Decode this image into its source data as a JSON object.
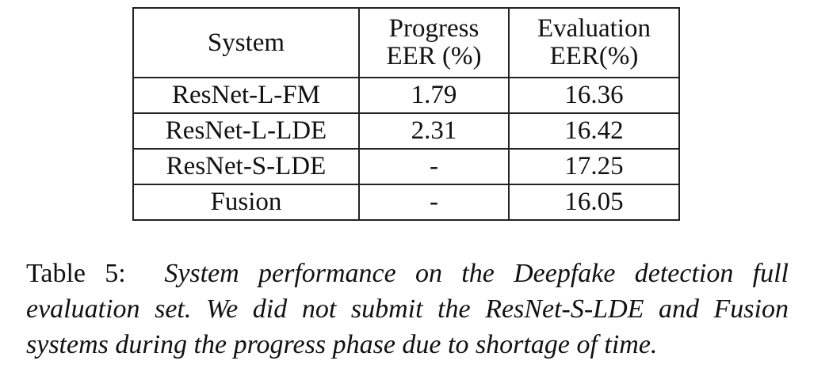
{
  "table": {
    "headers": {
      "system": [
        "System"
      ],
      "progress": [
        "Progress",
        "EER (%)"
      ],
      "evaluation": [
        "Evaluation",
        "EER(%)"
      ]
    },
    "rows": [
      {
        "system": "ResNet-L-FM",
        "progress": "1.79",
        "evaluation": "16.36"
      },
      {
        "system": "ResNet-L-LDE",
        "progress": "2.31",
        "evaluation": "16.42"
      },
      {
        "system": "ResNet-S-LDE",
        "progress": "-",
        "evaluation": "17.25"
      },
      {
        "system": "Fusion",
        "progress": "-",
        "evaluation": "16.05"
      }
    ]
  },
  "caption": {
    "label": "Table 5:",
    "text": "System performance on the Deepfake detection full evaluation set. We did not submit the ResNet-S-LDE and Fusion systems during the progress phase due to shortage of time."
  }
}
